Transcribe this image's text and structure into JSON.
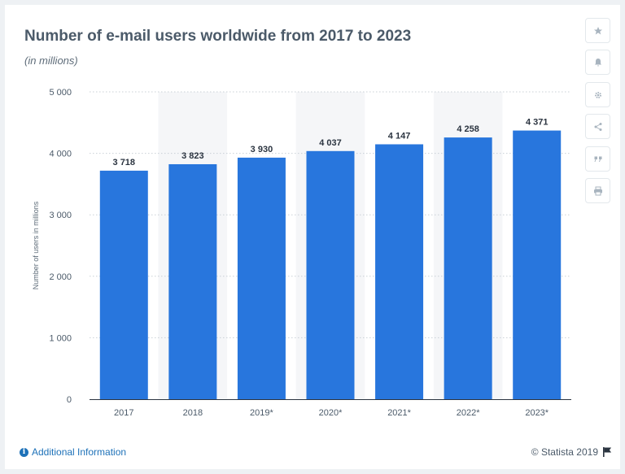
{
  "header": {
    "title": "Number of e-mail users worldwide from 2017 to 2023",
    "subtitle": "(in millions)"
  },
  "toolbar": {
    "buttons": [
      {
        "icon": "star-icon"
      },
      {
        "icon": "bell-icon"
      },
      {
        "icon": "gear-icon"
      },
      {
        "icon": "share-icon"
      },
      {
        "icon": "quote-icon"
      },
      {
        "icon": "print-icon"
      }
    ]
  },
  "footer": {
    "info_label": "Additional Information",
    "info_symbol": "i",
    "copyright": "© Statista 2019"
  },
  "colors": {
    "bar": "#2876dd",
    "band": "#f5f6f8",
    "link": "#1d71b8"
  },
  "chart_data": {
    "type": "bar",
    "ylabel": "Number of users in millions",
    "categories": [
      "2017",
      "2018",
      "2019*",
      "2020*",
      "2021*",
      "2022*",
      "2023*"
    ],
    "values": [
      3718,
      3823,
      3930,
      4037,
      4147,
      4258,
      4371
    ],
    "value_labels": [
      "3 718",
      "3 823",
      "3 930",
      "4 037",
      "4 147",
      "4 258",
      "4 371"
    ],
    "ylim": [
      0,
      5000
    ],
    "yticks": [
      0,
      1000,
      2000,
      3000,
      4000,
      5000
    ],
    "ytick_labels": [
      "0",
      "1 000",
      "2 000",
      "3 000",
      "4 000",
      "5 000"
    ],
    "grid": true
  }
}
